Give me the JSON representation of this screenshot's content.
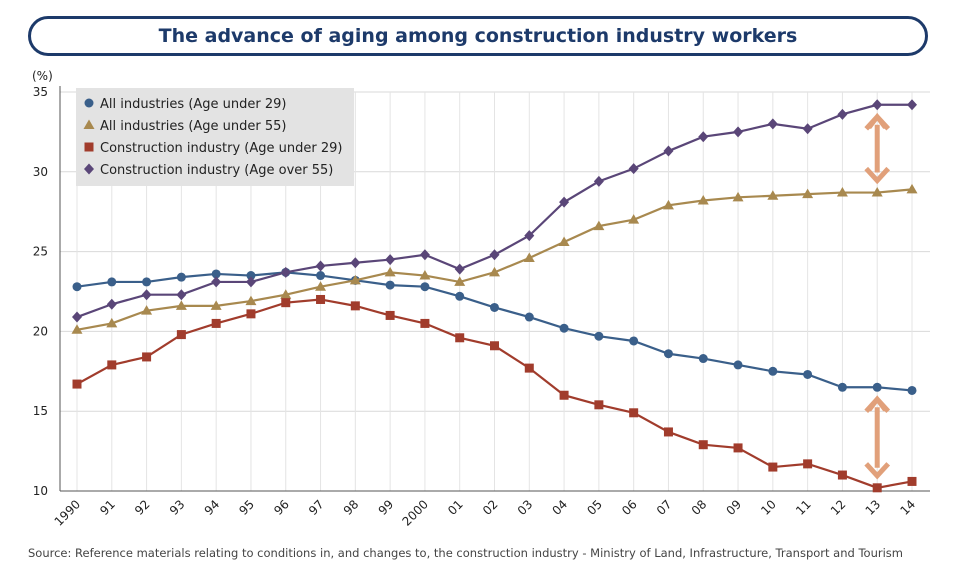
{
  "title": "The advance of aging among construction industry workers",
  "source": "Source: Reference materials relating to conditions in, and changes to, the construction industry - Ministry of Land, Infrastructure, Transport and Tourism",
  "chart_data": {
    "type": "line",
    "title": "The advance of aging among construction industry workers",
    "ylabel": "(%)",
    "xlabel": "",
    "ylim": [
      10,
      35
    ],
    "yticks": [
      10,
      15,
      20,
      25,
      30,
      35
    ],
    "grid": true,
    "legend_position": "top-left",
    "categories": [
      "1990",
      "91",
      "92",
      "93",
      "94",
      "95",
      "96",
      "97",
      "98",
      "99",
      "2000",
      "01",
      "02",
      "03",
      "04",
      "05",
      "06",
      "07",
      "08",
      "09",
      "10",
      "11",
      "12",
      "13",
      "14"
    ],
    "series": [
      {
        "name": "All industries (Age under 29)",
        "color": "#3a5f8a",
        "marker": "circle",
        "values": [
          22.8,
          23.1,
          23.1,
          23.4,
          23.6,
          23.5,
          23.7,
          23.5,
          23.2,
          22.9,
          22.8,
          22.2,
          21.5,
          20.9,
          20.2,
          19.7,
          19.4,
          18.6,
          18.3,
          17.9,
          17.5,
          17.3,
          16.5,
          16.5,
          16.3
        ]
      },
      {
        "name": "All industries (Age under 55)",
        "color": "#a8894f",
        "marker": "triangle",
        "values": [
          20.1,
          20.5,
          21.3,
          21.6,
          21.6,
          21.9,
          22.3,
          22.8,
          23.2,
          23.7,
          23.5,
          23.1,
          23.7,
          24.6,
          25.6,
          26.6,
          27.0,
          27.9,
          28.2,
          28.4,
          28.5,
          28.6,
          28.7,
          28.7,
          28.9
        ]
      },
      {
        "name": "Construction industry (Age under 29)",
        "color": "#a13c2c",
        "marker": "square",
        "values": [
          16.7,
          17.9,
          18.4,
          19.8,
          20.5,
          21.1,
          21.8,
          22.0,
          21.6,
          21.0,
          20.5,
          19.6,
          19.1,
          17.7,
          16.0,
          15.4,
          14.9,
          13.7,
          12.9,
          12.7,
          11.5,
          11.7,
          11.0,
          10.2,
          10.6
        ]
      },
      {
        "name": "Construction industry (Age over 55)",
        "color": "#5a4678",
        "marker": "diamond",
        "values": [
          20.9,
          21.7,
          22.3,
          22.3,
          23.1,
          23.1,
          23.7,
          24.1,
          24.3,
          24.5,
          24.8,
          23.9,
          24.8,
          26.0,
          28.1,
          29.4,
          30.2,
          31.3,
          32.2,
          32.5,
          33.0,
          32.7,
          33.6,
          34.2,
          34.2
        ]
      }
    ],
    "annotations": [
      {
        "type": "double-arrow",
        "category": "13",
        "from": 28.7,
        "to": 34.2,
        "color": "#e1a07a"
      },
      {
        "type": "double-arrow",
        "category": "13",
        "from": 10.2,
        "to": 16.5,
        "color": "#e1a07a"
      }
    ]
  }
}
